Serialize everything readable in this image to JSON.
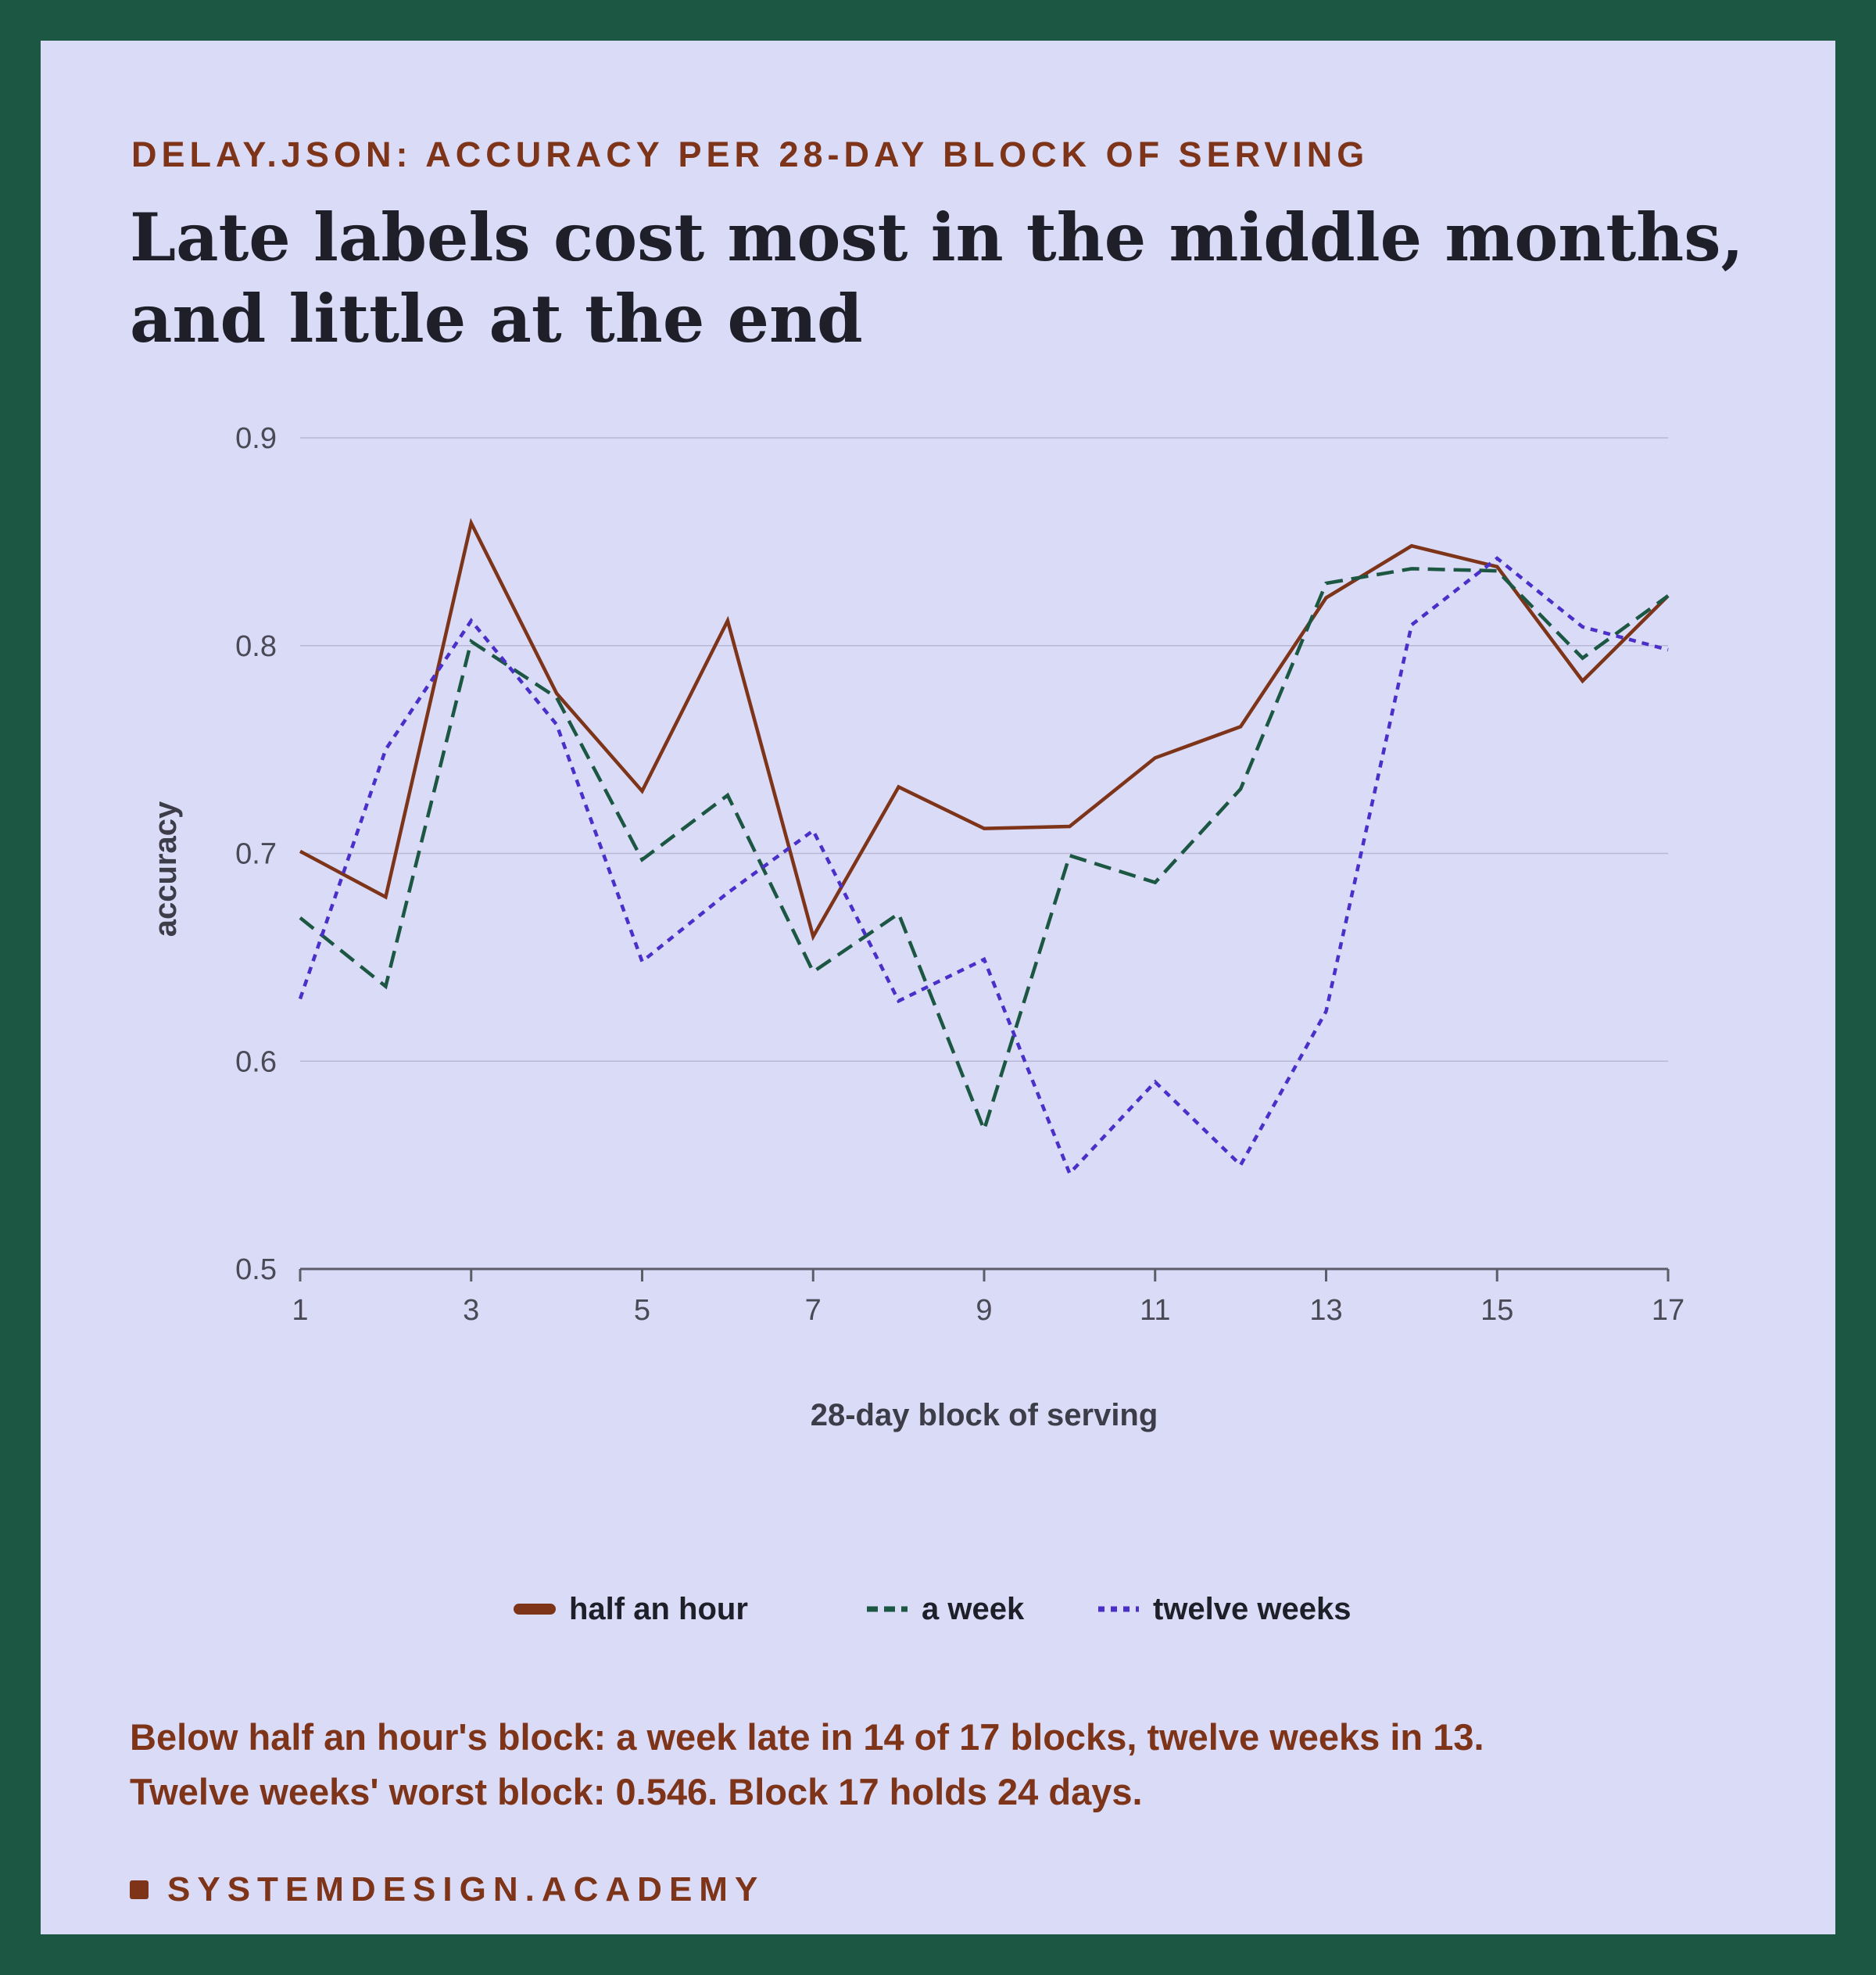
{
  "header": {
    "eyebrow": "DELAY.JSON: ACCURACY PER 28-DAY BLOCK OF SERVING",
    "title": "Late labels cost most in the middle months, and little at the end"
  },
  "chart_data": {
    "type": "line",
    "xlabel": "28-day block of serving",
    "ylabel": "accuracy",
    "x": [
      1,
      2,
      3,
      4,
      5,
      6,
      7,
      8,
      9,
      10,
      11,
      12,
      13,
      14,
      15,
      16,
      17
    ],
    "xlim": [
      1,
      17
    ],
    "ylim": [
      0.5,
      0.9
    ],
    "xticks": [
      "1",
      "3",
      "5",
      "7",
      "9",
      "11",
      "13",
      "15",
      "17"
    ],
    "yticks": [
      "0.5",
      "0.6",
      "0.7",
      "0.8",
      "0.9"
    ],
    "grid": "horizontal",
    "legend_position": "bottom",
    "series": [
      {
        "name": "half an hour",
        "color": "#7d3419",
        "dash": "solid",
        "values": [
          0.701,
          0.679,
          0.859,
          0.777,
          0.73,
          0.812,
          0.66,
          0.732,
          0.712,
          0.713,
          0.746,
          0.761,
          0.823,
          0.848,
          0.838,
          0.783,
          0.824
        ]
      },
      {
        "name": "a week",
        "color": "#1b5742",
        "dash": "dashed",
        "values": [
          0.669,
          0.636,
          0.802,
          0.775,
          0.697,
          0.728,
          0.643,
          0.671,
          0.567,
          0.699,
          0.686,
          0.731,
          0.83,
          0.837,
          0.836,
          0.794,
          0.824
        ]
      },
      {
        "name": "twelve weeks",
        "color": "#4a2fc9",
        "dash": "dotted",
        "values": [
          0.63,
          0.75,
          0.812,
          0.762,
          0.648,
          0.681,
          0.711,
          0.629,
          0.649,
          0.546,
          0.59,
          0.55,
          0.624,
          0.81,
          0.842,
          0.809,
          0.798
        ]
      }
    ]
  },
  "note": {
    "line1": "Below half an hour's block: a week late in 14 of 17 blocks, twelve weeks in 13.",
    "line2": "Twelve weeks' worst block: 0.546. Block 17 holds 24 days."
  },
  "brand": {
    "label": "SYSTEMDESIGN.ACADEMY"
  }
}
